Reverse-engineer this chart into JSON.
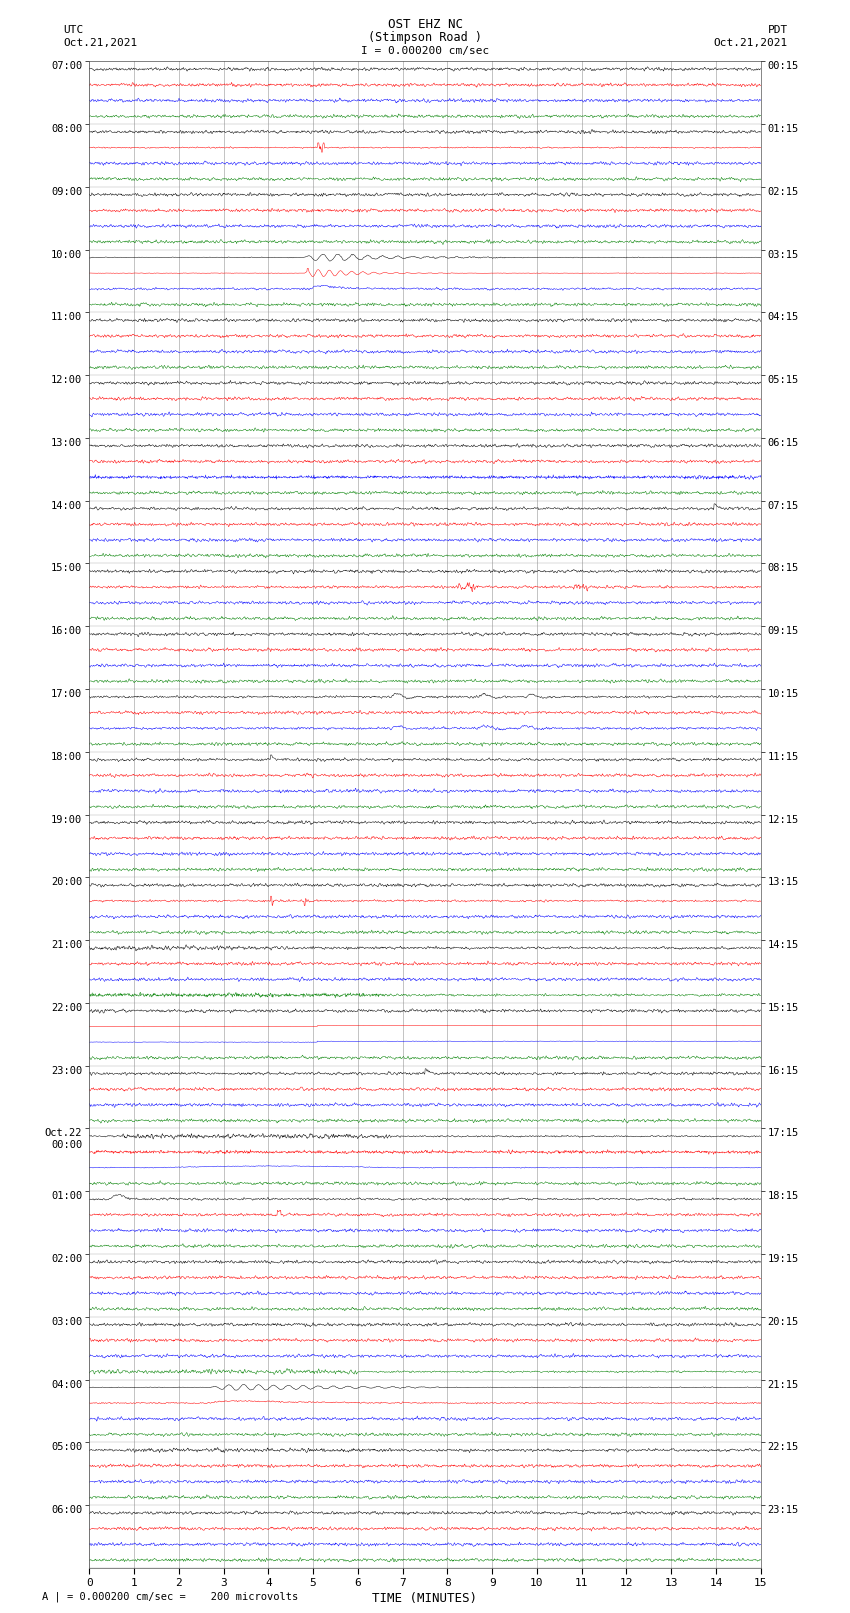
{
  "title_line1": "OST EHZ NC",
  "title_line2": "(Stimpson Road )",
  "title_scale": "I = 0.000200 cm/sec",
  "left_header1": "UTC",
  "left_header2": "Oct.21,2021",
  "right_header1": "PDT",
  "right_header2": "Oct.21,2021",
  "xlabel": "TIME (MINUTES)",
  "footer": "A | = 0.000200 cm/sec =    200 microvolts",
  "xlim": [
    0,
    15
  ],
  "xticks": [
    0,
    1,
    2,
    3,
    4,
    5,
    6,
    7,
    8,
    9,
    10,
    11,
    12,
    13,
    14,
    15
  ],
  "bg_color": "#ffffff",
  "trace_colors": [
    "black",
    "red",
    "blue",
    "green"
  ],
  "grid_color": "#888888",
  "n_hour_blocks": 24,
  "n_traces_per_block": 4,
  "utc_labels": [
    "07:00",
    "08:00",
    "09:00",
    "10:00",
    "11:00",
    "12:00",
    "13:00",
    "14:00",
    "15:00",
    "16:00",
    "17:00",
    "18:00",
    "19:00",
    "20:00",
    "21:00",
    "22:00",
    "23:00",
    "Oct.22\n00:00",
    "01:00",
    "02:00",
    "03:00",
    "04:00",
    "05:00",
    "06:00"
  ],
  "pdt_labels": [
    "00:15",
    "01:15",
    "02:15",
    "03:15",
    "04:15",
    "05:15",
    "06:15",
    "07:15",
    "08:15",
    "09:15",
    "10:15",
    "11:15",
    "12:15",
    "13:15",
    "14:15",
    "15:15",
    "16:15",
    "17:15",
    "18:15",
    "19:15",
    "20:15",
    "21:15",
    "22:15",
    "23:15"
  ],
  "seed": 42
}
